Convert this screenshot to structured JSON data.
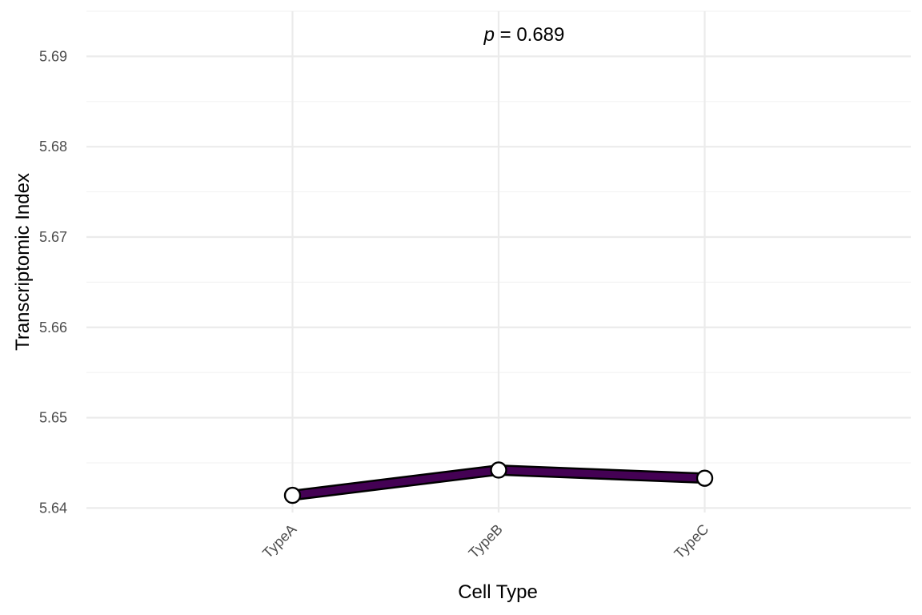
{
  "chart_data": {
    "type": "line",
    "categories": [
      "TypeA",
      "TypeB",
      "TypeC"
    ],
    "series": [
      {
        "values": [
          5.6414,
          5.6442,
          5.6433
        ]
      }
    ],
    "xlabel": "Cell Type",
    "ylabel": "Transcriptomic Index",
    "ylim": [
      5.6395,
      5.695
    ],
    "yticks": [
      5.64,
      5.65,
      5.66,
      5.67,
      5.68,
      5.69
    ],
    "ytick_labels": [
      "5.64",
      "5.65",
      "5.66",
      "5.67",
      "5.68",
      "5.69"
    ],
    "annotation": {
      "italic": "p",
      "rest": " = 0.689"
    },
    "grid": true,
    "legend": "none",
    "colors": {
      "line_fill": "#440154",
      "line_outline": "#000000",
      "point_fill": "#ffffff",
      "point_outline": "#000000"
    }
  }
}
